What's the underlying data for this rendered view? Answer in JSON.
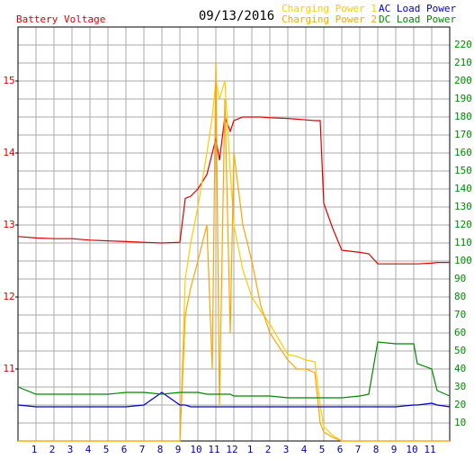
{
  "chart_data": {
    "type": "line",
    "title": "09/13/2016",
    "x": [
      0,
      1,
      2,
      3,
      4,
      5,
      6,
      7,
      8,
      9,
      9.3,
      9.6,
      10,
      10.5,
      10.8,
      11,
      11.2,
      11.5,
      11.8,
      12,
      12.5,
      13,
      13.5,
      14,
      15,
      15.5,
      16,
      16.5,
      16.8,
      17,
      17.5,
      18,
      19,
      19.5,
      20,
      21,
      22,
      22.2,
      23,
      23.3,
      24
    ],
    "series": [
      {
        "name": "Battery Voltage",
        "color": "#dd0000",
        "axis": "y",
        "values": [
          12.84,
          12.82,
          12.81,
          12.81,
          12.79,
          12.78,
          12.77,
          12.76,
          12.75,
          12.76,
          13.37,
          13.4,
          13.5,
          13.7,
          14.0,
          14.2,
          13.9,
          14.5,
          14.3,
          14.45,
          14.5,
          14.5,
          14.5,
          14.49,
          14.48,
          14.47,
          14.46,
          14.45,
          14.45,
          13.3,
          12.95,
          12.65,
          12.62,
          12.6,
          12.46,
          12.46,
          12.46,
          12.46,
          12.47,
          12.48,
          12.48
        ]
      },
      {
        "name": "Charging Power 1",
        "color": "#ffcc00",
        "axis": "y2",
        "values": [
          0,
          0,
          0,
          0,
          0,
          0,
          0,
          0,
          0,
          0,
          90,
          110,
          130,
          160,
          180,
          200,
          190,
          200,
          150,
          120,
          95,
          80,
          72,
          65,
          48,
          47,
          45,
          44,
          20,
          8,
          3,
          0,
          0,
          0,
          0,
          0,
          0,
          0,
          0,
          0,
          0
        ]
      },
      {
        "name": "Charging Power 2",
        "color": "#ffa500",
        "axis": "y2",
        "values": [
          0,
          0,
          0,
          0,
          0,
          0,
          0,
          0,
          0,
          0,
          70,
          85,
          100,
          120,
          40,
          210,
          20,
          190,
          60,
          160,
          120,
          100,
          75,
          60,
          45,
          40,
          40,
          38,
          10,
          5,
          2,
          0,
          0,
          0,
          0,
          0,
          0,
          0,
          0,
          0,
          0
        ]
      },
      {
        "name": "AC Load Power",
        "color": "#0000cc",
        "axis": "y2",
        "values": [
          20,
          19,
          19,
          19,
          19,
          19,
          19,
          20,
          27,
          20,
          20,
          19,
          19,
          19,
          19,
          19,
          19,
          19,
          19,
          19,
          19,
          19,
          19,
          19,
          19,
          19,
          19,
          19,
          19,
          19,
          19,
          19,
          19,
          19,
          19,
          19,
          20,
          20,
          21,
          20,
          19
        ]
      },
      {
        "name": "DC Load Power",
        "color": "#008800",
        "axis": "y2",
        "values": [
          30,
          26,
          26,
          26,
          26,
          26,
          27,
          27,
          26,
          27,
          27,
          27,
          27,
          26,
          26,
          26,
          26,
          26,
          26,
          25,
          25,
          25,
          25,
          25,
          24,
          24,
          24,
          24,
          24,
          24,
          24,
          24,
          25,
          26,
          55,
          54,
          54,
          43,
          40,
          28,
          25
        ]
      }
    ],
    "xlim": [
      0,
      24
    ],
    "xticks": [
      1,
      2,
      3,
      4,
      5,
      6,
      7,
      8,
      9,
      10,
      11,
      12,
      {
        "value": 13,
        "label": "1"
      },
      {
        "value": 14,
        "label": "2"
      },
      {
        "value": 15,
        "label": "3"
      },
      {
        "value": 16,
        "label": "4"
      },
      {
        "value": 17,
        "label": "5"
      },
      {
        "value": 18,
        "label": "6"
      },
      {
        "value": 19,
        "label": "7"
      },
      {
        "value": 20,
        "label": "8"
      },
      {
        "value": 21,
        "label": "9"
      },
      {
        "value": 22,
        "label": "10"
      },
      {
        "value": 23,
        "label": "11"
      }
    ],
    "ylim": [
      10,
      15.75
    ],
    "yticks": [
      11,
      12,
      13,
      14,
      15
    ],
    "ytick_color": "#dd0000",
    "y2lim": [
      0,
      230
    ],
    "y2ticks": [
      10,
      20,
      30,
      40,
      50,
      60,
      70,
      80,
      90,
      100,
      110,
      120,
      130,
      140,
      150,
      160,
      170,
      180,
      190,
      200,
      210,
      220
    ],
    "y2tick_color": "#008800",
    "xtick_color": "#0000aa",
    "grid": true
  }
}
